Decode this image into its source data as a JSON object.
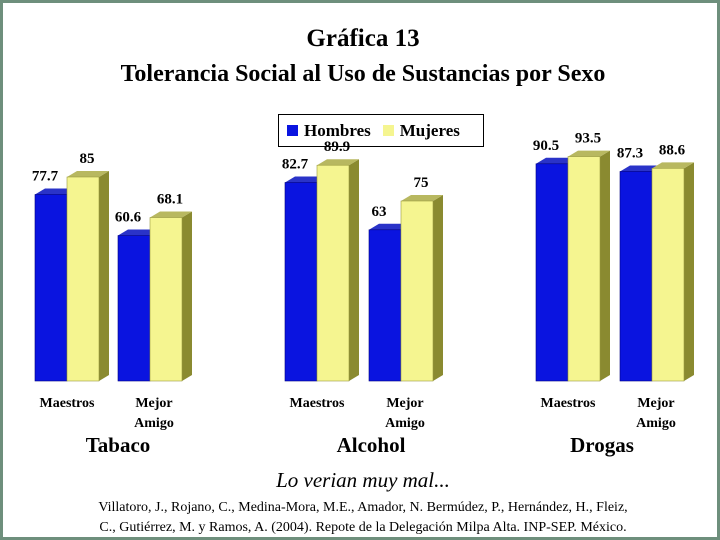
{
  "chart_data": {
    "type": "bar",
    "title": "Gráfica 13",
    "subtitle": "Tolerancia Social al Uso de Sustancias por Sexo",
    "groups": [
      {
        "name": "Tabaco",
        "categories": [
          [
            "Maestros"
          ],
          [
            "Mejor",
            "Amigo"
          ]
        ],
        "series": [
          {
            "name": "Hombres",
            "values": [
              77.7,
              60.6
            ]
          },
          {
            "name": "Mujeres",
            "values": [
              85,
              68.1
            ]
          }
        ]
      },
      {
        "name": "Alcohol",
        "categories": [
          [
            "Maestros"
          ],
          [
            "Mejor",
            "Amigo"
          ]
        ],
        "series": [
          {
            "name": "Hombres",
            "values": [
              82.7,
              63
            ]
          },
          {
            "name": "Mujeres",
            "values": [
              89.9,
              75
            ]
          }
        ]
      },
      {
        "name": "Drogas",
        "categories": [
          [
            "Maestros"
          ],
          [
            "Mejor",
            "Amigo"
          ]
        ],
        "series": [
          {
            "name": "Hombres",
            "values": [
              90.5,
              87.3
            ]
          },
          {
            "name": "Mujeres",
            "values": [
              93.5,
              88.6
            ]
          }
        ]
      }
    ],
    "legend": [
      "Hombres",
      "Mujeres"
    ],
    "legend_position": "top-center",
    "colors": {
      "Hombres": "#0a14e0",
      "Mujeres": "#f5f590"
    },
    "ylim": [
      0,
      100
    ],
    "grid": false,
    "annotation": "Lo verian muy mal..."
  },
  "source": {
    "line1": "Villatoro, J., Rojano, C., Medina-Mora, M.E., Amador, N. Bermúdez, P., Hernández, H., Fleiz,",
    "line2": "C., Gutiérrez, M. y Ramos, A. (2004). Repote de la Delegación Milpa Alta. INP-SEP. México."
  }
}
